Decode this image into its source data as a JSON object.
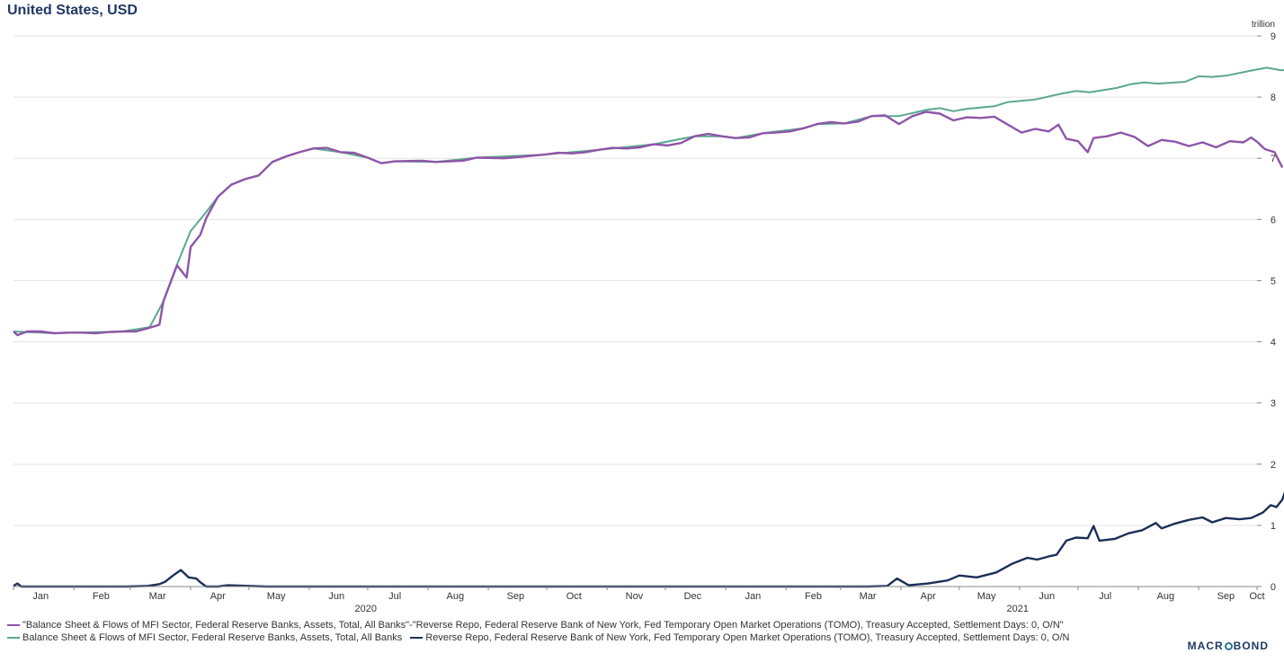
{
  "title": "United States, USD",
  "logo": {
    "text_left": "MACR",
    "text_right": "BOND"
  },
  "colors": {
    "diff": "#8e55a8",
    "assets": "#5ba88f",
    "repo": "#1c2f56",
    "grid": "#e3e3e3",
    "axis": "#888888"
  },
  "legend": [
    {
      "label": "\"Balance Sheet & Flows of MFI Sector, Federal Reserve Banks, Assets, Total, All Banks\"-\"Reverse Repo, Federal Reserve Bank of New York, Fed Temporary Open Market Operations (TOMO), Treasury Accepted, Settlement Days: 0, O/N\"",
      "color": "#8e55a8"
    },
    {
      "label": "Balance Sheet & Flows of MFI Sector, Federal Reserve Banks, Assets, Total, All Banks",
      "color": "#5ba88f"
    },
    {
      "label": "Reverse Repo, Federal Reserve Bank of New York, Fed Temporary Open Market Operations (TOMO), Treasury Accepted, Settlement Days: 0, O/N",
      "color": "#1c2f56"
    }
  ],
  "chart_data": {
    "type": "line",
    "y_unit_label": "trillion",
    "ylim": [
      0,
      9
    ],
    "y_ticks": [
      "0",
      "1",
      "2",
      "3",
      "4",
      "5",
      "6",
      "7",
      "8",
      "9"
    ],
    "xlim": [
      "2020-01-01",
      "2021-10-01"
    ],
    "x_tick_labels": [
      "Jan",
      "Feb",
      "Mar",
      "Apr",
      "May",
      "Jun",
      "Jul",
      "Aug",
      "Sep",
      "Oct",
      "Nov",
      "Dec",
      "Jan",
      "Feb",
      "Mar",
      "Apr",
      "May",
      "Jun",
      "Jul",
      "Aug",
      "Sep",
      "Oct"
    ],
    "x_tick_dates": [
      "2020-01-15",
      "2020-02-15",
      "2020-03-15",
      "2020-04-15",
      "2020-05-15",
      "2020-06-15",
      "2020-07-15",
      "2020-08-15",
      "2020-09-15",
      "2020-10-15",
      "2020-11-15",
      "2020-12-15",
      "2021-01-15",
      "2021-02-15",
      "2021-03-15",
      "2021-04-15",
      "2021-05-15",
      "2021-06-15",
      "2021-07-15",
      "2021-08-15",
      "2021-09-15",
      "2021-10-01"
    ],
    "year_labels": [
      {
        "label": "2020",
        "date": "2020-06-30"
      },
      {
        "label": "2021",
        "date": "2021-05-31"
      }
    ],
    "grid": true,
    "legend_position": "bottom",
    "series": [
      {
        "name": "\"Balance Sheet & Flows of MFI Sector, Federal Reserve Banks, Assets, Total, All Banks\"-\"Reverse Repo, Federal Reserve Bank of New York, Fed Temporary Open Market Operations (TOMO), Treasury Accepted, Settlement Days: 0, O/N\"",
        "key": "diff",
        "points": [
          [
            "2020-01-01",
            4.17
          ],
          [
            "2020-01-03",
            4.11
          ],
          [
            "2020-01-08",
            4.17
          ],
          [
            "2020-01-15",
            4.17
          ],
          [
            "2020-01-22",
            4.14
          ],
          [
            "2020-01-29",
            4.15
          ],
          [
            "2020-02-05",
            4.15
          ],
          [
            "2020-02-12",
            4.14
          ],
          [
            "2020-02-19",
            4.16
          ],
          [
            "2020-02-26",
            4.17
          ],
          [
            "2020-03-04",
            4.17
          ],
          [
            "2020-03-11",
            4.23
          ],
          [
            "2020-03-16",
            4.28
          ],
          [
            "2020-03-18",
            4.66
          ],
          [
            "2020-03-25",
            5.25
          ],
          [
            "2020-03-30",
            5.05
          ],
          [
            "2020-04-01",
            5.55
          ],
          [
            "2020-04-06",
            5.75
          ],
          [
            "2020-04-09",
            6.02
          ],
          [
            "2020-04-15",
            6.37
          ],
          [
            "2020-04-22",
            6.57
          ],
          [
            "2020-04-29",
            6.66
          ],
          [
            "2020-05-06",
            6.72
          ],
          [
            "2020-05-13",
            6.94
          ],
          [
            "2020-05-20",
            7.03
          ],
          [
            "2020-05-27",
            7.1
          ],
          [
            "2020-06-03",
            7.16
          ],
          [
            "2020-06-10",
            7.17
          ],
          [
            "2020-06-17",
            7.1
          ],
          [
            "2020-06-24",
            7.09
          ],
          [
            "2020-07-01",
            7.01
          ],
          [
            "2020-07-08",
            6.92
          ],
          [
            "2020-07-15",
            6.95
          ],
          [
            "2020-07-29",
            6.96
          ],
          [
            "2020-08-05",
            6.94
          ],
          [
            "2020-08-19",
            6.96
          ],
          [
            "2020-08-26",
            7.01
          ],
          [
            "2020-09-09",
            7.0
          ],
          [
            "2020-09-16",
            7.02
          ],
          [
            "2020-09-30",
            7.06
          ],
          [
            "2020-10-07",
            7.09
          ],
          [
            "2020-10-14",
            7.08
          ],
          [
            "2020-10-21",
            7.1
          ],
          [
            "2020-10-28",
            7.14
          ],
          [
            "2020-11-04",
            7.17
          ],
          [
            "2020-11-11",
            7.16
          ],
          [
            "2020-11-18",
            7.18
          ],
          [
            "2020-11-25",
            7.23
          ],
          [
            "2020-12-02",
            7.21
          ],
          [
            "2020-12-09",
            7.25
          ],
          [
            "2020-12-16",
            7.36
          ],
          [
            "2020-12-23",
            7.4
          ],
          [
            "2020-12-30",
            7.36
          ],
          [
            "2021-01-06",
            7.33
          ],
          [
            "2021-01-13",
            7.34
          ],
          [
            "2021-01-20",
            7.41
          ],
          [
            "2021-01-27",
            7.42
          ],
          [
            "2021-02-03",
            7.44
          ],
          [
            "2021-02-10",
            7.49
          ],
          [
            "2021-02-17",
            7.56
          ],
          [
            "2021-02-24",
            7.59
          ],
          [
            "2021-03-03",
            7.57
          ],
          [
            "2021-03-10",
            7.6
          ],
          [
            "2021-03-17",
            7.69
          ],
          [
            "2021-03-24",
            7.7
          ],
          [
            "2021-03-31",
            7.56
          ],
          [
            "2021-04-07",
            7.69
          ],
          [
            "2021-04-14",
            7.76
          ],
          [
            "2021-04-21",
            7.73
          ],
          [
            "2021-04-28",
            7.62
          ],
          [
            "2021-05-05",
            7.67
          ],
          [
            "2021-05-12",
            7.66
          ],
          [
            "2021-05-19",
            7.68
          ],
          [
            "2021-05-26",
            7.55
          ],
          [
            "2021-06-02",
            7.42
          ],
          [
            "2021-06-09",
            7.48
          ],
          [
            "2021-06-16",
            7.44
          ],
          [
            "2021-06-21",
            7.55
          ],
          [
            "2021-06-25",
            7.32
          ],
          [
            "2021-07-01",
            7.28
          ],
          [
            "2021-07-06",
            7.1
          ],
          [
            "2021-07-09",
            7.33
          ],
          [
            "2021-07-16",
            7.36
          ],
          [
            "2021-07-23",
            7.42
          ],
          [
            "2021-07-30",
            7.35
          ],
          [
            "2021-08-06",
            7.2
          ],
          [
            "2021-08-13",
            7.3
          ],
          [
            "2021-08-20",
            7.27
          ],
          [
            "2021-08-27",
            7.2
          ],
          [
            "2021-09-03",
            7.26
          ],
          [
            "2021-09-10",
            7.18
          ],
          [
            "2021-09-17",
            7.28
          ],
          [
            "2021-09-24",
            7.26
          ],
          [
            "2021-09-28",
            7.34
          ],
          [
            "2021-10-01",
            7.27
          ],
          [
            "2021-10-05",
            7.15
          ],
          [
            "2021-10-10",
            7.1
          ],
          [
            "2021-10-14",
            6.85
          ]
        ]
      },
      {
        "name": "Balance Sheet & Flows of MFI Sector, Federal Reserve Banks, Assets, Total, All Banks",
        "key": "assets",
        "points": [
          [
            "2020-01-01",
            4.17
          ],
          [
            "2020-01-22",
            4.14
          ],
          [
            "2020-02-26",
            4.17
          ],
          [
            "2020-03-11",
            4.24
          ],
          [
            "2020-03-18",
            4.66
          ],
          [
            "2020-03-25",
            5.26
          ],
          [
            "2020-04-01",
            5.81
          ],
          [
            "2020-04-08",
            6.08
          ],
          [
            "2020-04-15",
            6.37
          ],
          [
            "2020-04-22",
            6.57
          ],
          [
            "2020-04-29",
            6.66
          ],
          [
            "2020-05-06",
            6.72
          ],
          [
            "2020-05-13",
            6.94
          ],
          [
            "2020-05-20",
            7.03
          ],
          [
            "2020-05-27",
            7.1
          ],
          [
            "2020-06-03",
            7.16
          ],
          [
            "2020-06-17",
            7.1
          ],
          [
            "2020-07-01",
            7.01
          ],
          [
            "2020-07-08",
            6.92
          ],
          [
            "2020-07-15",
            6.95
          ],
          [
            "2020-08-05",
            6.94
          ],
          [
            "2020-08-26",
            7.01
          ],
          [
            "2020-09-30",
            7.06
          ],
          [
            "2020-10-28",
            7.14
          ],
          [
            "2020-11-25",
            7.23
          ],
          [
            "2020-12-16",
            7.36
          ],
          [
            "2020-12-30",
            7.36
          ],
          [
            "2021-01-06",
            7.33
          ],
          [
            "2021-01-20",
            7.41
          ],
          [
            "2021-02-10",
            7.49
          ],
          [
            "2021-02-17",
            7.56
          ],
          [
            "2021-03-03",
            7.57
          ],
          [
            "2021-03-17",
            7.69
          ],
          [
            "2021-03-31",
            7.69
          ],
          [
            "2021-04-14",
            7.79
          ],
          [
            "2021-04-21",
            7.82
          ],
          [
            "2021-04-28",
            7.77
          ],
          [
            "2021-05-05",
            7.81
          ],
          [
            "2021-05-19",
            7.85
          ],
          [
            "2021-05-26",
            7.92
          ],
          [
            "2021-06-09",
            7.96
          ],
          [
            "2021-06-23",
            8.06
          ],
          [
            "2021-06-30",
            8.1
          ],
          [
            "2021-07-07",
            8.08
          ],
          [
            "2021-07-21",
            8.15
          ],
          [
            "2021-07-28",
            8.21
          ],
          [
            "2021-08-04",
            8.24
          ],
          [
            "2021-08-11",
            8.22
          ],
          [
            "2021-08-25",
            8.25
          ],
          [
            "2021-09-01",
            8.34
          ],
          [
            "2021-09-08",
            8.33
          ],
          [
            "2021-09-15",
            8.35
          ],
          [
            "2021-09-29",
            8.44
          ],
          [
            "2021-10-06",
            8.48
          ],
          [
            "2021-10-13",
            8.44
          ],
          [
            "2021-10-20",
            8.44
          ]
        ]
      },
      {
        "name": "Reverse Repo, Federal Reserve Bank of New York, Fed Temporary Open Market Operations (TOMO), Treasury Accepted, Settlement Days: 0, O/N",
        "key": "repo",
        "points": [
          [
            "2020-01-01",
            0.01
          ],
          [
            "2020-01-03",
            0.05
          ],
          [
            "2020-01-05",
            0.0
          ],
          [
            "2020-02-28",
            0.0
          ],
          [
            "2020-03-10",
            0.01
          ],
          [
            "2020-03-16",
            0.04
          ],
          [
            "2020-03-19",
            0.08
          ],
          [
            "2020-03-23",
            0.18
          ],
          [
            "2020-03-27",
            0.27
          ],
          [
            "2020-03-31",
            0.15
          ],
          [
            "2020-04-04",
            0.13
          ],
          [
            "2020-04-06",
            0.07
          ],
          [
            "2020-04-09",
            0.0
          ],
          [
            "2020-04-15",
            0.0
          ],
          [
            "2020-04-20",
            0.02
          ],
          [
            "2020-05-10",
            0.0
          ],
          [
            "2021-03-15",
            0.0
          ],
          [
            "2021-03-25",
            0.01
          ],
          [
            "2021-03-30",
            0.13
          ],
          [
            "2021-04-05",
            0.02
          ],
          [
            "2021-04-15",
            0.05
          ],
          [
            "2021-04-25",
            0.1
          ],
          [
            "2021-05-01",
            0.18
          ],
          [
            "2021-05-10",
            0.15
          ],
          [
            "2021-05-20",
            0.23
          ],
          [
            "2021-05-28",
            0.37
          ],
          [
            "2021-06-05",
            0.47
          ],
          [
            "2021-06-10",
            0.44
          ],
          [
            "2021-06-17",
            0.5
          ],
          [
            "2021-06-20",
            0.52
          ],
          [
            "2021-06-25",
            0.75
          ],
          [
            "2021-06-30",
            0.8
          ],
          [
            "2021-07-06",
            0.79
          ],
          [
            "2021-07-09",
            0.99
          ],
          [
            "2021-07-12",
            0.75
          ],
          [
            "2021-07-20",
            0.78
          ],
          [
            "2021-07-27",
            0.87
          ],
          [
            "2021-08-03",
            0.92
          ],
          [
            "2021-08-10",
            1.04
          ],
          [
            "2021-08-13",
            0.95
          ],
          [
            "2021-08-20",
            1.03
          ],
          [
            "2021-08-27",
            1.09
          ],
          [
            "2021-09-03",
            1.13
          ],
          [
            "2021-09-08",
            1.05
          ],
          [
            "2021-09-15",
            1.12
          ],
          [
            "2021-09-22",
            1.1
          ],
          [
            "2021-09-28",
            1.12
          ],
          [
            "2021-10-04",
            1.21
          ],
          [
            "2021-10-08",
            1.33
          ],
          [
            "2021-10-11",
            1.3
          ],
          [
            "2021-10-14",
            1.42
          ],
          [
            "2021-10-16",
            1.6
          ]
        ]
      }
    ]
  }
}
